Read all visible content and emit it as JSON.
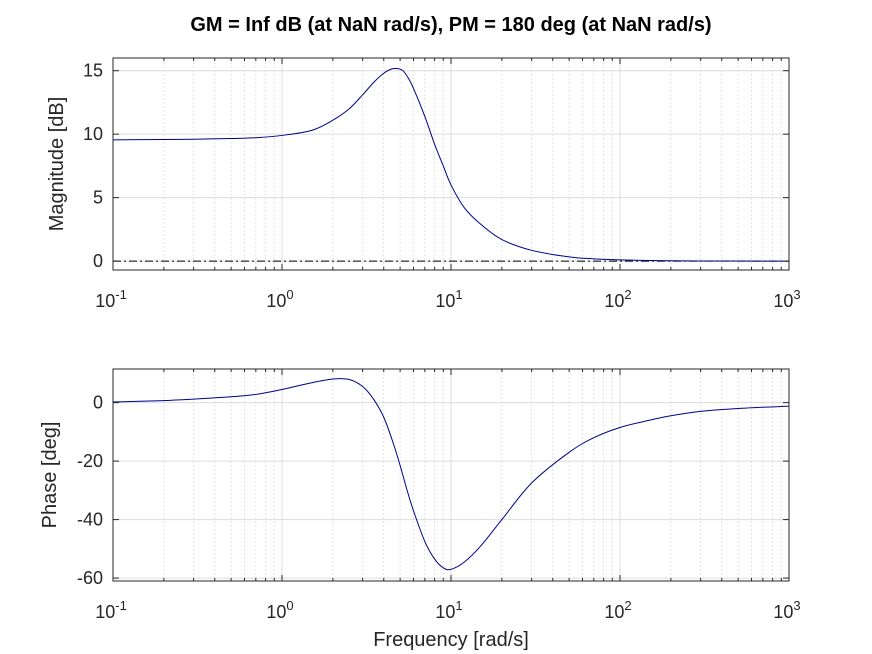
{
  "chart_data": [
    {
      "type": "line",
      "title": "GM = Inf dB (at NaN rad/s),   PM = 180 deg (at NaN rad/s)",
      "xlabel": "",
      "ylabel": "Magnitude [dB]",
      "x_scale": "log",
      "xlim": [
        0.1,
        1000
      ],
      "ylim": [
        -0.7,
        16
      ],
      "x_ticks": [
        {
          "base": "10",
          "exp": "-1"
        },
        {
          "base": "10",
          "exp": "0"
        },
        {
          "base": "10",
          "exp": "1"
        },
        {
          "base": "10",
          "exp": "2"
        },
        {
          "base": "10",
          "exp": "3"
        }
      ],
      "y_ticks": [
        "0",
        "5",
        "10",
        "15"
      ],
      "grid": true,
      "series": [
        {
          "color": "#00008b",
          "x": [
            0.1,
            0.2,
            0.3,
            0.5,
            0.7,
            1,
            1.5,
            2,
            2.5,
            3,
            3.5,
            4,
            4.5,
            4.9,
            5.2,
            5.6,
            6,
            7,
            8,
            9,
            10,
            12,
            15,
            20,
            30,
            50,
            70,
            100,
            150,
            200,
            300,
            500,
            1000
          ],
          "y": [
            9.55,
            9.58,
            9.6,
            9.66,
            9.72,
            9.9,
            10.3,
            11.1,
            12.0,
            13.1,
            14.1,
            14.8,
            15.15,
            15.15,
            15.0,
            14.4,
            13.6,
            11.4,
            9.2,
            7.5,
            6.0,
            4.2,
            2.9,
            1.7,
            0.85,
            0.33,
            0.18,
            0.1,
            0.05,
            0.03,
            0.01,
            0.005,
            0.0
          ]
        }
      ],
      "reference_line": {
        "y": 0,
        "style": "dash-dot",
        "color": "#000000"
      }
    },
    {
      "type": "line",
      "title": "",
      "xlabel": "Frequency [rad/s]",
      "ylabel": "Phase [deg]",
      "x_scale": "log",
      "xlim": [
        0.1,
        1000
      ],
      "ylim": [
        -61,
        11.5
      ],
      "x_ticks": [
        {
          "base": "10",
          "exp": "-1"
        },
        {
          "base": "10",
          "exp": "0"
        },
        {
          "base": "10",
          "exp": "1"
        },
        {
          "base": "10",
          "exp": "2"
        },
        {
          "base": "10",
          "exp": "3"
        }
      ],
      "y_ticks": [
        "0",
        "-20",
        "-40",
        "-60"
      ],
      "grid": true,
      "series": [
        {
          "color": "#00008b",
          "x": [
            0.1,
            0.2,
            0.3,
            0.5,
            0.7,
            1,
            1.5,
            2,
            2.5,
            3,
            3.5,
            4,
            4.5,
            5,
            5.5,
            6,
            7,
            8,
            9,
            10,
            12,
            15,
            20,
            30,
            50,
            70,
            100,
            150,
            200,
            300,
            500,
            1000
          ],
          "y": [
            0.2,
            0.7,
            1.2,
            2.0,
            2.8,
            4.5,
            6.8,
            8.1,
            7.9,
            5.5,
            1.0,
            -5.0,
            -13.0,
            -21.5,
            -30.0,
            -37.0,
            -47.5,
            -53.5,
            -56.5,
            -57.0,
            -54.5,
            -49.0,
            -40.0,
            -27.5,
            -17.0,
            -12.0,
            -8.5,
            -6.0,
            -4.5,
            -3.0,
            -2.0,
            -1.2
          ]
        }
      ],
      "reference_line": null
    }
  ]
}
